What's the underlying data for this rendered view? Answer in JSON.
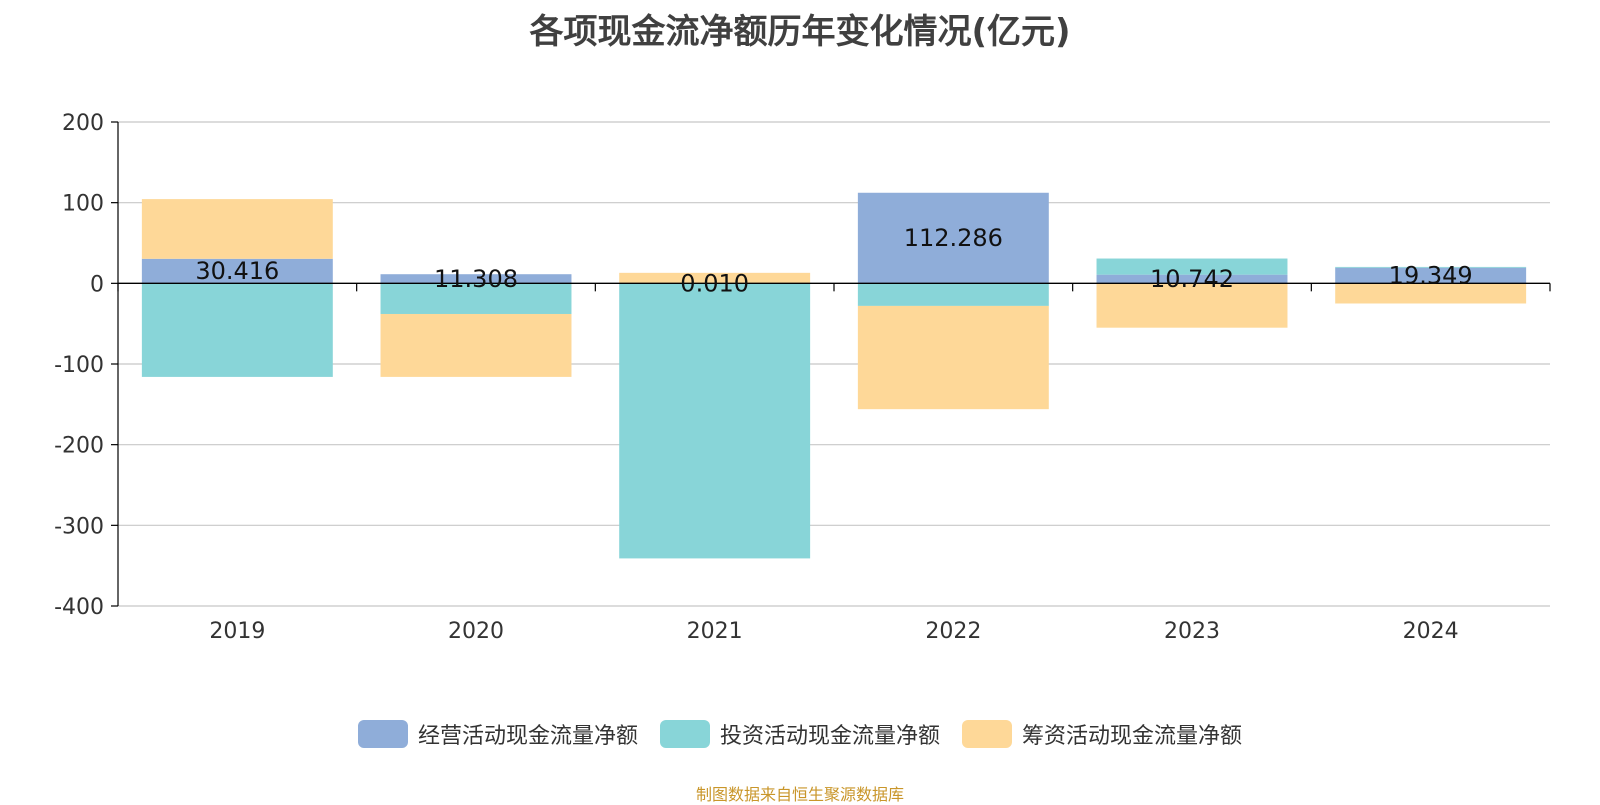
{
  "colors": {
    "operating": "#8fadd9",
    "investing": "#88d5d8",
    "financing": "#fed898",
    "axis": "#000000",
    "grid": "#c8c8c8",
    "source": "#c9962a"
  },
  "chart_data": {
    "type": "bar",
    "stacked": true,
    "title": "各项现金流净额历年变化情况(亿元)",
    "xlabel": "",
    "ylabel": "",
    "categories": [
      "2019",
      "2020",
      "2021",
      "2022",
      "2023",
      "2024"
    ],
    "ylim": [
      -400,
      200
    ],
    "yticks": [
      "200",
      "100",
      "0",
      "-100",
      "-200",
      "-300",
      "-400"
    ],
    "grid": true,
    "legend_position": "bottom",
    "series": [
      {
        "name": "经营活动现金流量净额",
        "values": [
          30.416,
          11.308,
          0.01,
          112.286,
          10.742,
          19.349
        ],
        "labels": [
          "30.416",
          "11.308",
          "0.010",
          "112.286",
          "10.742",
          "19.349"
        ]
      },
      {
        "name": "投资活动现金流量净额",
        "values": [
          -116,
          -38,
          -341,
          -28,
          20,
          1
        ]
      },
      {
        "name": "筹资活动现金流量净额",
        "values": [
          74,
          -78,
          13,
          -128,
          -55,
          -25
        ]
      }
    ]
  },
  "source_note": "制图数据来自恒生聚源数据库"
}
